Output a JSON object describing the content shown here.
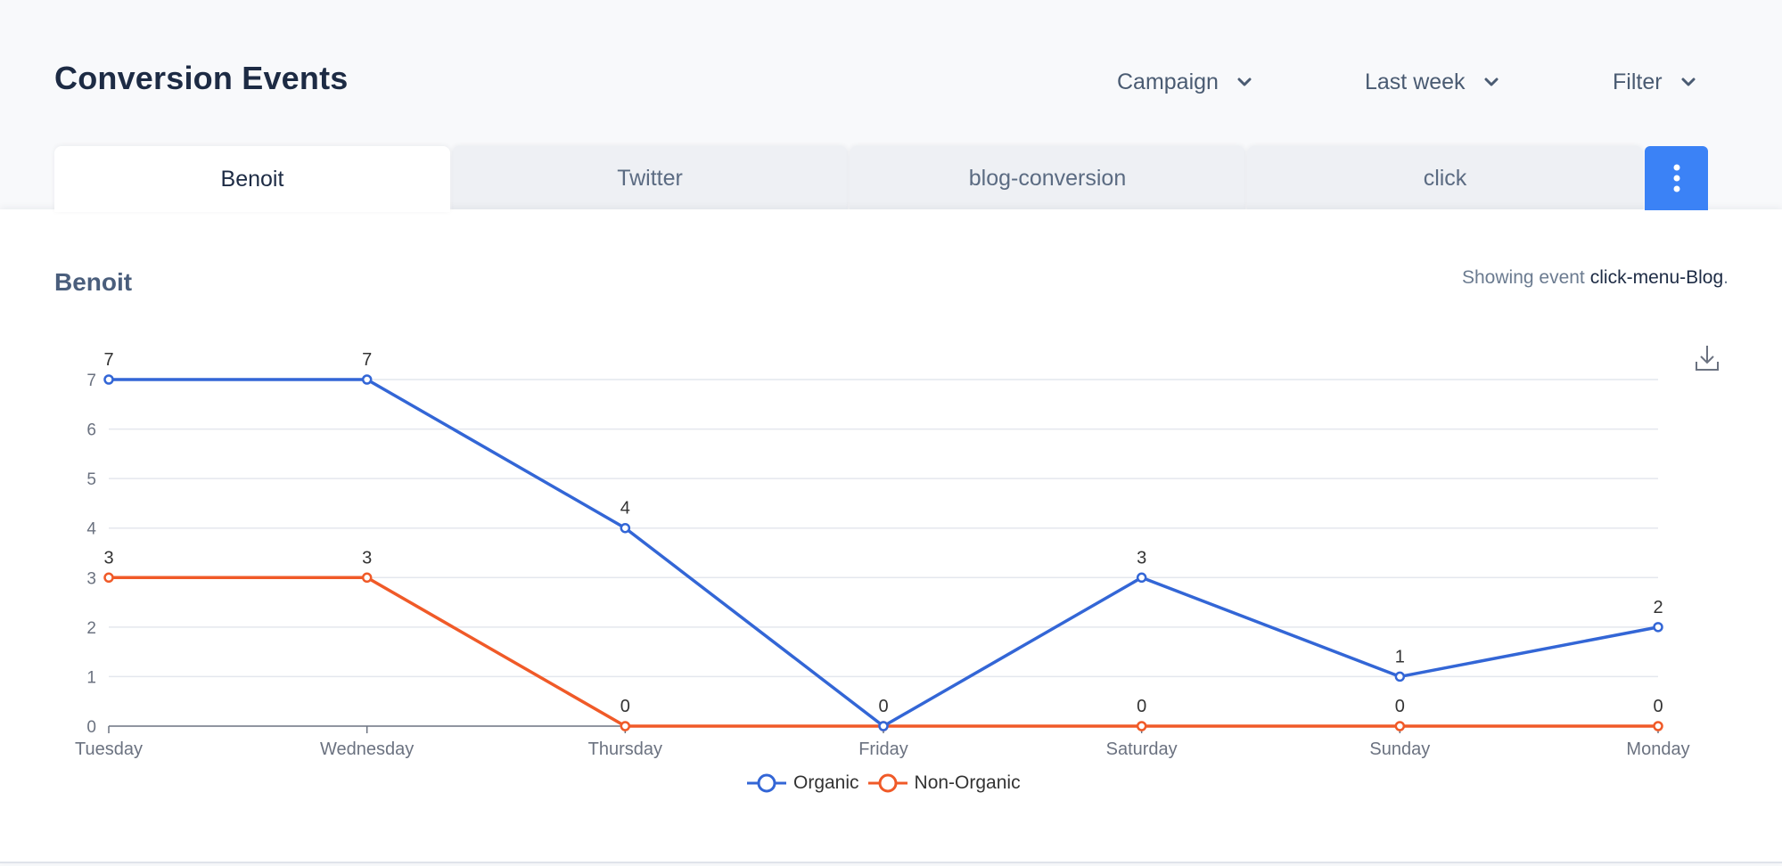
{
  "header": {
    "title": "Conversion Events",
    "dropdowns": [
      {
        "label": "Campaign"
      },
      {
        "label": "Last week"
      },
      {
        "label": "Filter"
      }
    ]
  },
  "tabs": [
    {
      "label": "Benoit",
      "active": true
    },
    {
      "label": "Twitter",
      "active": false
    },
    {
      "label": "blog-conversion",
      "active": false
    },
    {
      "label": "click",
      "active": false
    }
  ],
  "panel": {
    "title": "Benoit",
    "event_prefix": "Showing event",
    "event_name": "click-menu-Blog",
    "event_suffix": "."
  },
  "colors": {
    "accent": "#3b82f6",
    "organic": "#3366d6",
    "non_organic": "#f05a28"
  },
  "chart_data": {
    "type": "line",
    "categories": [
      "Tuesday",
      "Wednesday",
      "Thursday",
      "Friday",
      "Saturday",
      "Sunday",
      "Monday"
    ],
    "series": [
      {
        "name": "Organic",
        "values": [
          7,
          7,
          4,
          0,
          3,
          1,
          2
        ],
        "color": "#3366d6"
      },
      {
        "name": "Non-Organic",
        "values": [
          3,
          3,
          0,
          0,
          0,
          0,
          0
        ],
        "color": "#f05a28"
      }
    ],
    "ylim": [
      0,
      7
    ],
    "yticks": [
      0,
      1,
      2,
      3,
      4,
      5,
      6,
      7
    ],
    "grid": true,
    "data_labels": true,
    "legend": "bottom-center"
  }
}
